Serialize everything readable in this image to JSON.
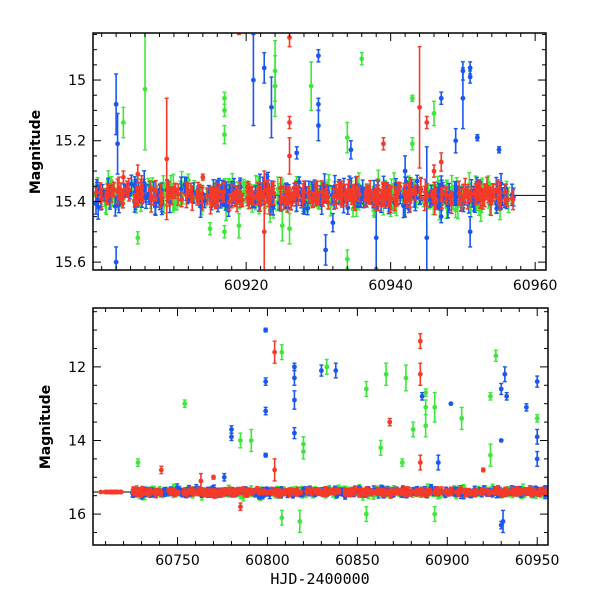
{
  "colors": {
    "blue": "#1a56f0",
    "green": "#3ee83a",
    "red": "#f53a2a"
  },
  "chart_data": [
    {
      "type": "scatter",
      "title": "",
      "xlabel": "",
      "ylabel": "Magnitude",
      "xlim": [
        60898.8,
        60961.5
      ],
      "ylim": [
        15.626,
        14.845
      ],
      "y_inverted": true,
      "xticks": [
        "60920",
        "60940",
        "60960"
      ],
      "xtick_values": [
        60920,
        60940,
        60960
      ],
      "yticks": [
        "15",
        "15.2",
        "15.4",
        "15.6"
      ],
      "ytick_values": [
        15,
        15.2,
        15.4,
        15.6
      ],
      "reference_line": 15.38,
      "baseline": {
        "mag": 15.38,
        "scatter": 0.02,
        "x_range": [
          60899.2,
          60957
        ]
      },
      "series": [
        {
          "name": "blue",
          "color": "#1a56f0",
          "points": [
            [
              60902,
              15.08,
              0.1
            ],
            [
              60902.2,
              15.21,
              0.1
            ],
            [
              60902,
              15.6,
              0.05
            ],
            [
              60921,
              15.0,
              0.15
            ],
            [
              60922.5,
              14.96,
              0.05
            ],
            [
              60923.5,
              15.09,
              0.1
            ],
            [
              60930,
              14.92,
              0.02
            ],
            [
              60930,
              15.08,
              0.02
            ],
            [
              60930,
              15.15,
              0.05
            ],
            [
              60931,
              15.56,
              0.05
            ],
            [
              60938,
              15.52,
              0.1
            ],
            [
              60942,
              15.3,
              0.05
            ],
            [
              60945,
              15.52,
              0.3
            ],
            [
              60947,
              15.06,
              0.02
            ],
            [
              60947,
              15.45,
              0.02
            ],
            [
              60950,
              14.97,
              0.03
            ],
            [
              60950,
              15.06,
              0.1
            ],
            [
              60951,
              14.96,
              0.02
            ],
            [
              60951,
              14.99,
              0.02
            ],
            [
              60952,
              15.19,
              0.01
            ],
            [
              60955,
              15.23,
              0.01
            ],
            [
              60951,
              15.5,
              0.05
            ],
            [
              60932,
              15.47,
              0.03
            ],
            [
              60949,
              15.2,
              0.04
            ],
            [
              60916,
              15.35,
              0.02
            ],
            [
              60927,
              15.24,
              0.02
            ],
            [
              60934.5,
              15.23,
              0.03
            ]
          ]
        },
        {
          "name": "green",
          "color": "#3ee83a",
          "points": [
            [
              60903,
              15.14,
              0.05
            ],
            [
              60906,
              15.03,
              0.2
            ],
            [
              60905,
              15.52,
              0.02
            ],
            [
              60917,
              15.06,
              0.02
            ],
            [
              60917,
              15.1,
              0.02
            ],
            [
              60917,
              15.18,
              0.03
            ],
            [
              60917,
              15.5,
              0.02
            ],
            [
              60924,
              14.97,
              0.1
            ],
            [
              60924,
              15.02,
              0.1
            ],
            [
              60929,
              15.02,
              0.08
            ],
            [
              60936,
              14.93,
              0.02
            ],
            [
              60934,
              15.59,
              0.03
            ],
            [
              60934,
              15.19,
              0.05
            ],
            [
              60943,
              15.06,
              0.01
            ],
            [
              60943,
              15.21,
              0.02
            ],
            [
              60946,
              15.11,
              0.04
            ],
            [
              60912,
              15.33,
              0.02
            ],
            [
              60915,
              15.49,
              0.02
            ],
            [
              60919,
              15.48,
              0.04
            ],
            [
              60925,
              15.48,
              0.05
            ],
            [
              60926,
              15.49,
              0.05
            ]
          ]
        },
        {
          "name": "red",
          "color": "#f53a2a",
          "points": [
            [
              60919,
              14.84,
              0.01
            ],
            [
              60926,
              14.86,
              0.03
            ],
            [
              60926,
              15.14,
              0.02
            ],
            [
              60926,
              15.25,
              0.06
            ],
            [
              60909,
              15.26,
              0.2
            ],
            [
              60944,
              15.09,
              0.2
            ],
            [
              60945,
              15.14,
              0.02
            ],
            [
              60939,
              15.21,
              0.02
            ],
            [
              60922.5,
              15.5,
              0.2
            ],
            [
              60947,
              15.27,
              0.03
            ],
            [
              60946,
              15.3,
              0.02
            ],
            [
              60914,
              15.32,
              0.01
            ],
            [
              60903,
              15.32,
              0.02
            ],
            [
              60905,
              15.31,
              0.03
            ]
          ]
        }
      ]
    },
    {
      "type": "scatter",
      "title": "",
      "xlabel": "HJD-2400000",
      "ylabel": "Magnitude",
      "xlim": [
        60703,
        60956
      ],
      "ylim": [
        16.84,
        10.4
      ],
      "y_inverted": true,
      "xticks": [
        "60750",
        "60800",
        "60850",
        "60900",
        "60950"
      ],
      "xtick_values": [
        60750,
        60800,
        60850,
        60900,
        60950
      ],
      "yticks": [
        "12",
        "14",
        "16"
      ],
      "ytick_values": [
        12,
        14,
        16
      ],
      "reference_line": 15.4,
      "baseline": {
        "mag": 15.4,
        "scatter": 0.05,
        "x_range": [
          60725,
          60957
        ],
        "early_red_range": [
          60707,
          60719
        ]
      },
      "series": [
        {
          "name": "blue",
          "color": "#1a56f0",
          "points": [
            [
              60799,
              11.0,
              0.05
            ],
            [
              60799,
              12.4,
              0.1
            ],
            [
              60799,
              13.2,
              0.1
            ],
            [
              60799,
              14.4,
              0.05
            ],
            [
              60815,
              12.0,
              0.1
            ],
            [
              60815,
              12.3,
              0.2
            ],
            [
              60815,
              12.9,
              0.25
            ],
            [
              60815,
              13.8,
              0.15
            ],
            [
              60780,
              13.7,
              0.1
            ],
            [
              60780,
              13.9,
              0.1
            ],
            [
              60830,
              12.1,
              0.15
            ],
            [
              60838,
              12.1,
              0.2
            ],
            [
              60886,
              12.8,
              0.1
            ],
            [
              60902,
              13.0,
              0.02
            ],
            [
              60930,
              12.6,
              0.15
            ],
            [
              60932,
              12.2,
              0.2
            ],
            [
              60933,
              12.8,
              0.1
            ],
            [
              60944,
              13.1,
              0.1
            ],
            [
              60950,
              12.4,
              0.15
            ],
            [
              60950,
              13.9,
              0.2
            ],
            [
              60930,
              14.0,
              0.02
            ],
            [
              60931,
              16.2,
              0.3
            ],
            [
              60930,
              16.3,
              0.1
            ],
            [
              60895,
              14.6,
              0.2
            ],
            [
              60950,
              14.5,
              0.2
            ],
            [
              60776,
              15.0,
              0.1
            ]
          ]
        },
        {
          "name": "green",
          "color": "#3ee83a",
          "points": [
            [
              60754,
              13.0,
              0.1
            ],
            [
              60808,
              11.6,
              0.2
            ],
            [
              60820,
              14.1,
              0.2
            ],
            [
              60820,
              14.3,
              0.2
            ],
            [
              60833,
              12.0,
              0.2
            ],
            [
              60855,
              12.6,
              0.2
            ],
            [
              60866,
              12.2,
              0.3
            ],
            [
              60877,
              12.3,
              0.35
            ],
            [
              60881,
              13.7,
              0.2
            ],
            [
              60888,
              12.7,
              0.1
            ],
            [
              60888,
              13.1,
              0.2
            ],
            [
              60888,
              13.6,
              0.3
            ],
            [
              60893,
              13.1,
              0.4
            ],
            [
              60908,
              13.4,
              0.3
            ],
            [
              60924,
              12.8,
              0.1
            ],
            [
              60927,
              11.7,
              0.15
            ],
            [
              60950,
              13.4,
              0.1
            ],
            [
              60785,
              14.0,
              0.2
            ],
            [
              60791,
              14.0,
              0.3
            ],
            [
              60728,
              14.6,
              0.1
            ],
            [
              60863,
              14.2,
              0.2
            ],
            [
              60924,
              14.4,
              0.3
            ],
            [
              60808,
              16.1,
              0.2
            ],
            [
              60818,
              16.2,
              0.3
            ],
            [
              60855,
              16.0,
              0.2
            ],
            [
              60893,
              16.0,
              0.2
            ],
            [
              60875,
              14.6,
              0.1
            ]
          ]
        },
        {
          "name": "red",
          "color": "#f53a2a",
          "points": [
            [
              60804,
              11.6,
              0.3
            ],
            [
              60885,
              11.3,
              0.2
            ],
            [
              60885,
              12.2,
              0.3
            ],
            [
              60868,
              13.5,
              0.1
            ],
            [
              60741,
              14.8,
              0.1
            ],
            [
              60885,
              14.6,
              0.2
            ],
            [
              60804,
              14.8,
              0.3
            ],
            [
              60763,
              15.1,
              0.2
            ],
            [
              60785,
              15.8,
              0.1
            ],
            [
              60770,
              15.0,
              0.05
            ],
            [
              60920,
              14.8,
              0.05
            ]
          ]
        }
      ]
    }
  ]
}
